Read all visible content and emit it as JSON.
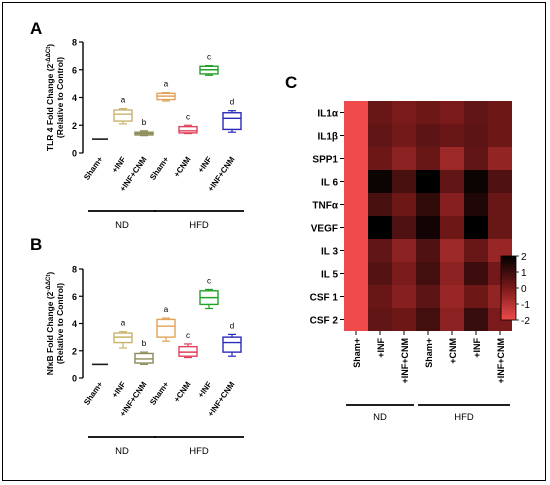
{
  "colors": {
    "sham": "#1a1a1a",
    "inf": "#c8b36c",
    "inf_cnm": "#8c8a57",
    "hfd_sham": "#e0a25a",
    "hfd_cnm": "#e0405a",
    "hfd_inf": "#22a02a",
    "hfd_inf_cnm": "#2a2ab8",
    "heat_low": "#f04a4a",
    "heat_mid": "#7a1a1a",
    "heat_high": "#000000"
  },
  "chart_data": [
    {
      "type": "box",
      "panel_label": "A",
      "ylabel_line1": "TLR 4 Fold Change (2",
      "ylabel_sup": "-ΔΔCt",
      "ylabel_line1_end": ")",
      "ylabel_line2": "(Relative to Control)",
      "ylim": [
        0,
        8
      ],
      "yticks": [
        "0",
        "2",
        "4",
        "6",
        "8"
      ],
      "categories": [
        "Sham+",
        "+INF",
        "+INF+CNM",
        "Sham+",
        "+CNM",
        "+INF",
        "+INF+CNM"
      ],
      "groups": [
        {
          "name": "ND",
          "members": [
            0,
            1,
            2
          ]
        },
        {
          "name": "HFD",
          "members": [
            3,
            4,
            5,
            6
          ]
        }
      ],
      "boxes": [
        {
          "min": 1.0,
          "q1": 1.0,
          "median": 1.0,
          "q3": 1.0,
          "max": 1.0,
          "letter": ""
        },
        {
          "min": 2.1,
          "q1": 2.3,
          "median": 2.8,
          "q3": 3.1,
          "max": 3.2,
          "letter": "a"
        },
        {
          "min": 1.25,
          "q1": 1.3,
          "median": 1.4,
          "q3": 1.5,
          "max": 1.6,
          "letter": "b"
        },
        {
          "min": 3.75,
          "q1": 3.85,
          "median": 4.1,
          "q3": 4.3,
          "max": 4.35,
          "letter": "a"
        },
        {
          "min": 1.4,
          "q1": 1.45,
          "median": 1.6,
          "q3": 1.9,
          "max": 2.0,
          "letter": "c"
        },
        {
          "min": 5.6,
          "q1": 5.7,
          "median": 6.0,
          "q3": 6.25,
          "max": 6.3,
          "letter": "c"
        },
        {
          "min": 1.5,
          "q1": 1.7,
          "median": 2.5,
          "q3": 2.9,
          "max": 3.05,
          "letter": "d"
        }
      ]
    },
    {
      "type": "box",
      "panel_label": "B",
      "ylabel_line1": "NfκB Fold Change (2",
      "ylabel_sup": "-ΔΔCt",
      "ylabel_line1_end": ")",
      "ylabel_line2": "(Relative to Control)",
      "ylim": [
        0,
        8
      ],
      "yticks": [
        "0",
        "2",
        "4",
        "6",
        "8"
      ],
      "categories": [
        "Sham+",
        "+INF",
        "+INF+CNM",
        "Sham+",
        "+CNM",
        "+INF",
        "+INF+CNM"
      ],
      "groups": [
        {
          "name": "ND",
          "members": [
            0,
            1,
            2
          ]
        },
        {
          "name": "HFD",
          "members": [
            3,
            4,
            5,
            6
          ]
        }
      ],
      "boxes": [
        {
          "min": 1.0,
          "q1": 1.0,
          "median": 1.0,
          "q3": 1.0,
          "max": 1.0,
          "letter": ""
        },
        {
          "min": 2.2,
          "q1": 2.6,
          "median": 3.0,
          "q3": 3.3,
          "max": 3.4,
          "letter": "a"
        },
        {
          "min": 1.0,
          "q1": 1.1,
          "median": 1.4,
          "q3": 1.8,
          "max": 1.9,
          "letter": "b"
        },
        {
          "min": 2.7,
          "q1": 3.0,
          "median": 3.8,
          "q3": 4.3,
          "max": 4.4,
          "letter": "a"
        },
        {
          "min": 1.5,
          "q1": 1.6,
          "median": 1.9,
          "q3": 2.3,
          "max": 2.5,
          "letter": "c"
        },
        {
          "min": 5.1,
          "q1": 5.4,
          "median": 5.9,
          "q3": 6.4,
          "max": 6.5,
          "letter": "c"
        },
        {
          "min": 1.6,
          "q1": 1.9,
          "median": 2.6,
          "q3": 3.0,
          "max": 3.2,
          "letter": "d"
        }
      ]
    },
    {
      "type": "heatmap",
      "panel_label": "C",
      "rows": [
        "IL1α",
        "IL1β",
        "SPP1",
        "IL 6",
        "TNFα",
        "VEGF",
        "IL 3",
        "IL 5",
        "CSF 1",
        "CSF 2"
      ],
      "columns": [
        "Sham+",
        "+INF",
        "+INF+CNM",
        "Sham+",
        "+CNM",
        "+INF",
        "+INF+CNM"
      ],
      "groups": [
        {
          "name": "ND",
          "members": [
            0,
            1,
            2
          ]
        },
        {
          "name": "HFD",
          "members": [
            3,
            4,
            5,
            6
          ]
        }
      ],
      "values": [
        [
          -2.0,
          0.3,
          0.0,
          0.2,
          0.0,
          0.4,
          0.2
        ],
        [
          -2.0,
          0.4,
          0.1,
          0.5,
          0.3,
          0.5,
          0.2
        ],
        [
          -2.0,
          0.2,
          -0.3,
          0.3,
          -0.6,
          0.4,
          -0.4
        ],
        [
          -2.0,
          1.8,
          0.8,
          2.0,
          0.4,
          1.8,
          0.7
        ],
        [
          -2.0,
          0.8,
          0.2,
          1.2,
          -0.2,
          1.5,
          0.3
        ],
        [
          -2.0,
          2.0,
          0.7,
          1.7,
          0.2,
          2.0,
          0.3
        ],
        [
          -2.0,
          0.4,
          -0.3,
          0.7,
          -0.6,
          0.3,
          -0.5
        ],
        [
          -2.0,
          0.6,
          0.0,
          0.9,
          -0.3,
          1.0,
          0.1
        ],
        [
          -2.0,
          0.3,
          -0.2,
          0.5,
          -0.5,
          0.2,
          -0.4
        ],
        [
          -2.0,
          0.4,
          0.2,
          0.9,
          -0.3,
          1.1,
          0.0
        ]
      ],
      "scale_ticks": [
        2,
        1,
        0,
        -1,
        -2
      ],
      "vlim": [
        -2,
        2
      ]
    }
  ]
}
